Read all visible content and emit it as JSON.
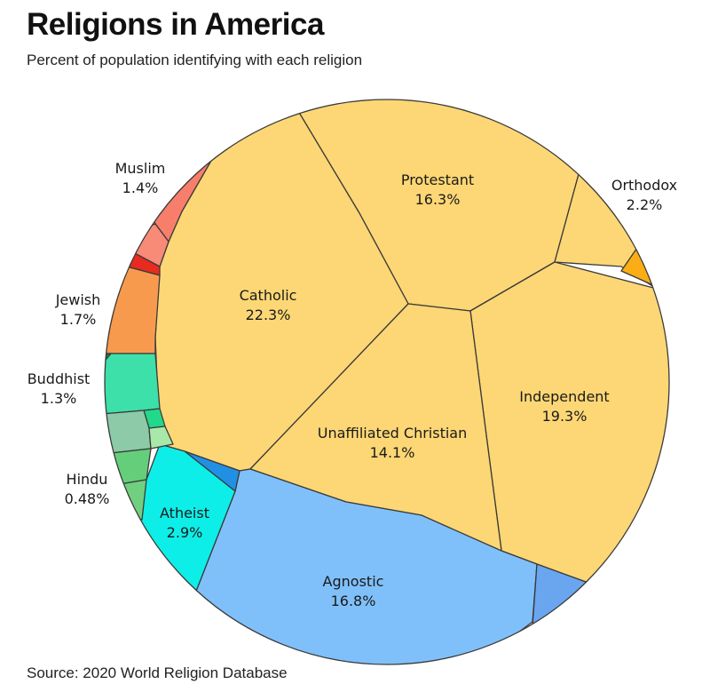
{
  "title": "Religions in America",
  "subtitle": "Percent of population identifying with each religion",
  "source": "Source: 2020 World Religion Database",
  "chart_data": {
    "type": "voronoi-treemap",
    "unit": "%",
    "series": [
      {
        "name": "Catholic",
        "value": 22.3,
        "label": "22.3%",
        "color": "#fdd775"
      },
      {
        "name": "Independent",
        "value": 19.3,
        "label": "19.3%",
        "color": "#fdd775"
      },
      {
        "name": "Agnostic",
        "value": 16.8,
        "label": "16.8%",
        "color": "#80c0fa"
      },
      {
        "name": "Protestant",
        "value": 16.3,
        "label": "16.3%",
        "color": "#fdd775"
      },
      {
        "name": "Unaffiliated Christian",
        "value": 14.1,
        "label": "14.1%",
        "color": "#fdd775"
      },
      {
        "name": "Atheist",
        "value": 2.9,
        "label": "2.9%",
        "color": "#0eeee8"
      },
      {
        "name": "Orthodox",
        "value": 2.2,
        "label": "2.2%",
        "color": "#fdd775"
      },
      {
        "name": "Jewish",
        "value": 1.7,
        "label": "1.7%",
        "color": "#f89a4e"
      },
      {
        "name": "Muslim",
        "value": 1.4,
        "label": "1.4%",
        "color": "#f87e6c"
      },
      {
        "name": "Buddhist",
        "value": 1.3,
        "label": "1.3%",
        "color": "#3ce0a8"
      },
      {
        "name": "Hindu",
        "value": 0.48,
        "label": "0.48%",
        "color": "#64cf7a"
      }
    ]
  }
}
